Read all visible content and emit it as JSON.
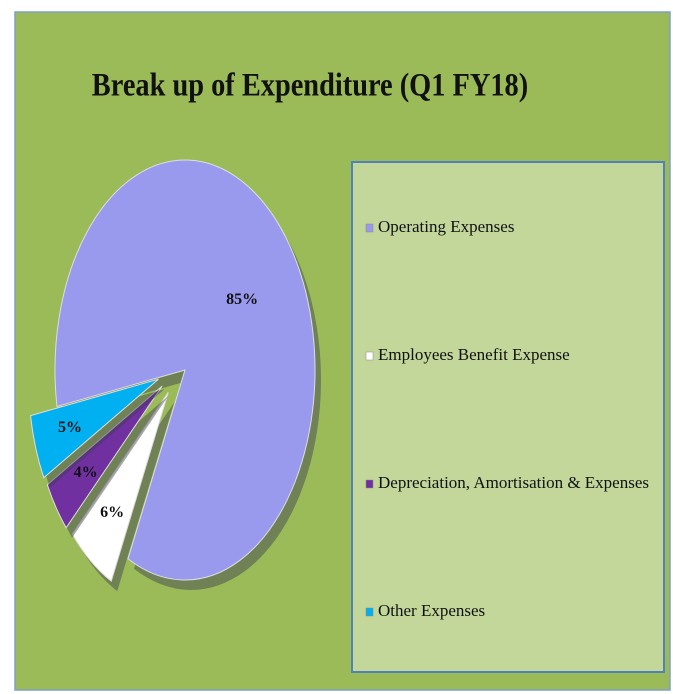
{
  "chart_data": {
    "type": "pie",
    "title": "Break up of Expenditure (Q1 FY18)",
    "categories": [
      "Operating Expenses",
      "Employees Benefit Expense",
      "Depreciation, Amortisation & Expenses",
      "Other Expenses"
    ],
    "values": [
      85,
      6,
      4,
      5
    ],
    "value_labels": [
      "85%",
      "6%",
      "4%",
      "5%"
    ],
    "colors": [
      "#9999ee",
      "#ffffff",
      "#7030a0",
      "#00b0f0"
    ],
    "legend": "right"
  }
}
